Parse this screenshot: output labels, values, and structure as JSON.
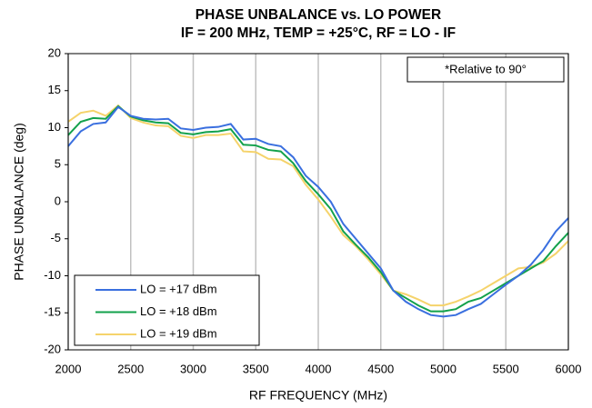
{
  "chart_data": {
    "type": "line",
    "title": "PHASE UNBALANCE vs. LO POWER",
    "subtitle": "IF = 200 MHz, TEMP = +25°C, RF = LO - IF",
    "x_label": "RF FREQUENCY (MHz)",
    "y_label": "PHASE UNBALANCE (deg)",
    "annotation": "*Relative to 90°",
    "x": [
      2000,
      2100,
      2200,
      2300,
      2400,
      2500,
      2600,
      2700,
      2800,
      2900,
      3000,
      3100,
      3200,
      3300,
      3400,
      3500,
      3600,
      3700,
      3800,
      3900,
      4000,
      4100,
      4200,
      4300,
      4400,
      4500,
      4600,
      4700,
      4800,
      4900,
      5000,
      5100,
      5200,
      5300,
      5400,
      5500,
      5600,
      5700,
      5800,
      5900,
      6000
    ],
    "series": [
      {
        "name": "LO = +17 dBm",
        "color": "#3a6fdf",
        "values": [
          7.5,
          9.5,
          10.5,
          10.7,
          12.8,
          11.6,
          11.2,
          11.1,
          11.2,
          9.9,
          9.7,
          10.0,
          10.1,
          10.5,
          8.4,
          8.5,
          7.8,
          7.5,
          6.0,
          3.5,
          2.0,
          0,
          -3,
          -5,
          -7,
          -9,
          -12,
          -13.5,
          -14.5,
          -15.3,
          -15.5,
          -15.3,
          -14.5,
          -13.8,
          -12.5,
          -11.2,
          -10,
          -8.5,
          -6.5,
          -4,
          -2.2
        ]
      },
      {
        "name": "LO = +18 dBm",
        "color": "#12a14b",
        "values": [
          9,
          10.8,
          11.3,
          11.2,
          12.9,
          11.5,
          11.0,
          10.7,
          10.6,
          9.3,
          9.1,
          9.4,
          9.5,
          9.8,
          7.7,
          7.6,
          7.0,
          6.8,
          5.2,
          2.8,
          1.0,
          -1,
          -4,
          -5.8,
          -7.5,
          -9.5,
          -12,
          -13,
          -14,
          -14.8,
          -14.8,
          -14.5,
          -13.5,
          -13,
          -12,
          -11,
          -10,
          -9,
          -8,
          -6,
          -4.2
        ]
      },
      {
        "name": "LO = +19 dBm",
        "color": "#f5d36b",
        "values": [
          10.8,
          12,
          12.3,
          11.6,
          13,
          11.3,
          10.7,
          10.3,
          10.2,
          8.9,
          8.6,
          9.0,
          9.0,
          9.2,
          6.8,
          6.7,
          5.8,
          5.7,
          4.8,
          2.3,
          0.3,
          -2,
          -4.5,
          -6,
          -7.8,
          -9.8,
          -12,
          -12.5,
          -13.2,
          -14,
          -14,
          -13.5,
          -12.8,
          -12,
          -11,
          -10,
          -9,
          -8.8,
          -8.2,
          -7,
          -5.3
        ]
      }
    ],
    "xlim": [
      2000,
      6000
    ],
    "xticks": [
      2000,
      2500,
      3000,
      3500,
      4000,
      4500,
      5000,
      5500,
      6000
    ],
    "ylim": [
      -20,
      20
    ],
    "yticks": [
      -20,
      -15,
      -10,
      -5,
      0,
      5,
      10,
      15,
      20
    ],
    "grid": "x",
    "legend": "lower left"
  }
}
